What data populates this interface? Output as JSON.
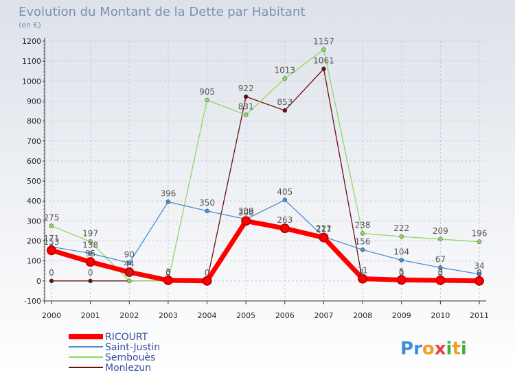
{
  "title": "Evolution du Montant de la Dette par Habitant",
  "subtitle": "(en €)",
  "brand": {
    "letters": [
      "P",
      "r",
      "o",
      "x",
      "i",
      "t",
      "i"
    ],
    "colors": [
      "#3a8fd8",
      "#3a8fd8",
      "#f0a020",
      "#e84040",
      "#40b040",
      "#f0a020",
      "#40b040"
    ]
  },
  "chart_data": {
    "type": "line",
    "title": "Evolution du Montant de la Dette par Habitant",
    "ylabel": "(en €)",
    "categories": [
      "2000",
      "2001",
      "2002",
      "2003",
      "2004",
      "2005",
      "2006",
      "2007",
      "2008",
      "2009",
      "2010",
      "2011"
    ],
    "ylim": [
      -100,
      1200
    ],
    "yticks": [
      -100,
      0,
      100,
      200,
      300,
      400,
      500,
      600,
      700,
      800,
      900,
      1000,
      1100,
      1200
    ],
    "legend_position": "bottom-left",
    "series": [
      {
        "name": "RICOURT",
        "color": "#ff0000",
        "values": [
          153,
          95,
          44,
          3,
          0,
          300,
          263,
          217,
          11,
          5,
          3,
          0
        ],
        "labels": [
          "153",
          "95",
          "44",
          "3",
          "0",
          "300",
          "263",
          "217",
          "11",
          "5",
          "3",
          "0"
        ]
      },
      {
        "name": "Saint-Justin",
        "color": "#4a8fd0",
        "values": [
          171,
          138,
          90,
          396,
          350,
          309,
          405,
          221,
          156,
          104,
          67,
          34
        ],
        "labels": [
          "171",
          "138",
          "90",
          "396",
          "350",
          "309",
          "405",
          "221",
          "156",
          "104",
          "67",
          "34"
        ]
      },
      {
        "name": "Semboues",
        "color": "#90d860",
        "values": [
          275,
          197,
          0,
          0,
          905,
          831,
          1013,
          1157,
          238,
          222,
          209,
          196
        ],
        "labels": [
          "275",
          "197",
          "0",
          "0",
          "905",
          "831",
          "1013",
          "1157",
          "238",
          "222",
          "209",
          "196"
        ]
      },
      {
        "name": "Monlezun",
        "color": "#6a1010",
        "values": [
          0,
          0,
          0,
          0,
          0,
          922,
          853,
          1061,
          1,
          0,
          0,
          0
        ],
        "labels": [
          "0",
          "0",
          "",
          "",
          "",
          "922",
          "853",
          "1061",
          "1",
          "0",
          "0",
          "0"
        ]
      }
    ],
    "legend": [
      "RICOURT",
      "Saint-Justin",
      "Sembouès",
      "Monlezun"
    ]
  }
}
